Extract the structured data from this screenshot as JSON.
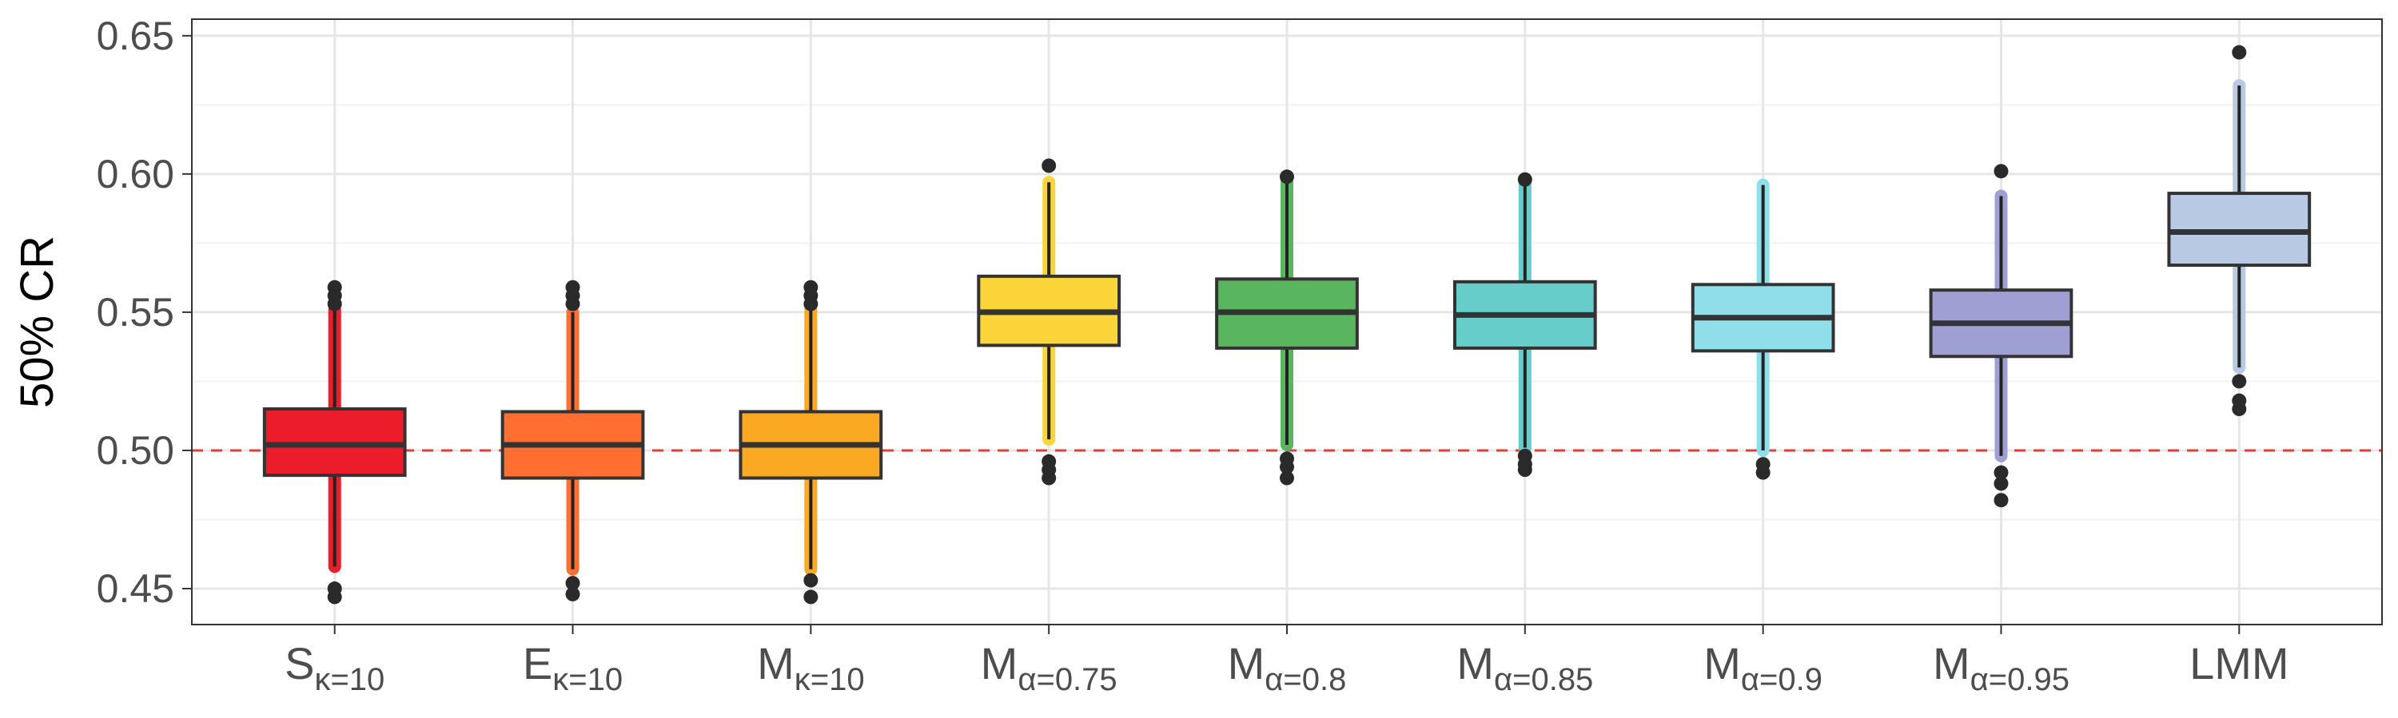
{
  "chart_data": {
    "type": "box",
    "ylabel": "50% CR",
    "ylim": [
      0.437,
      0.656
    ],
    "yticks": [
      0.45,
      0.5,
      0.55,
      0.6,
      0.65
    ],
    "ytick_labels": [
      "0.45",
      "0.50",
      "0.55",
      "0.60",
      "0.65"
    ],
    "reference_line": {
      "y": 0.5,
      "color": "#e0403a",
      "style": "dashed"
    },
    "grid": true,
    "legend": "none",
    "boxes": [
      {
        "label_main": "S",
        "label_sub": "κ=10",
        "color": "#ec1d2b",
        "q1": 0.491,
        "median": 0.502,
        "q3": 0.515,
        "whisker_low": 0.458,
        "whisker_high": 0.551,
        "outliers": [
          0.447,
          0.45,
          0.553,
          0.556,
          0.559
        ]
      },
      {
        "label_main": "E",
        "label_sub": "κ=10",
        "color": "#fe6f31",
        "q1": 0.49,
        "median": 0.502,
        "q3": 0.514,
        "whisker_low": 0.457,
        "whisker_high": 0.55,
        "outliers": [
          0.448,
          0.452,
          0.553,
          0.556,
          0.559
        ]
      },
      {
        "label_main": "M",
        "label_sub": "κ=10",
        "color": "#fba922",
        "q1": 0.49,
        "median": 0.502,
        "q3": 0.514,
        "whisker_low": 0.457,
        "whisker_high": 0.551,
        "outliers": [
          0.447,
          0.453,
          0.553,
          0.556,
          0.559
        ]
      },
      {
        "label_main": "M",
        "label_sub": "α=0.75",
        "color": "#fad53a",
        "q1": 0.538,
        "median": 0.55,
        "q3": 0.563,
        "whisker_low": 0.504,
        "whisker_high": 0.597,
        "outliers": [
          0.49,
          0.493,
          0.496,
          0.603
        ]
      },
      {
        "label_main": "M",
        "label_sub": "α=0.8",
        "color": "#5ab55f",
        "q1": 0.537,
        "median": 0.55,
        "q3": 0.562,
        "whisker_low": 0.502,
        "whisker_high": 0.597,
        "outliers": [
          0.49,
          0.494,
          0.497,
          0.599
        ]
      },
      {
        "label_main": "M",
        "label_sub": "α=0.85",
        "color": "#66cdcb",
        "q1": 0.537,
        "median": 0.549,
        "q3": 0.561,
        "whisker_low": 0.501,
        "whisker_high": 0.596,
        "outliers": [
          0.493,
          0.495,
          0.498,
          0.598
        ]
      },
      {
        "label_main": "M",
        "label_sub": "α=0.9",
        "color": "#8edfe9",
        "q1": 0.536,
        "median": 0.548,
        "q3": 0.56,
        "whisker_low": 0.5,
        "whisker_high": 0.596,
        "outliers": [
          0.492,
          0.495
        ]
      },
      {
        "label_main": "M",
        "label_sub": "α=0.95",
        "color": "#9f9fd4",
        "q1": 0.534,
        "median": 0.546,
        "q3": 0.558,
        "whisker_low": 0.498,
        "whisker_high": 0.592,
        "outliers": [
          0.482,
          0.488,
          0.492,
          0.601
        ]
      },
      {
        "label_main": "LMM",
        "label_sub": "",
        "color": "#b8c9e4",
        "q1": 0.567,
        "median": 0.579,
        "q3": 0.593,
        "whisker_low": 0.53,
        "whisker_high": 0.632,
        "outliers": [
          0.515,
          0.518,
          0.525,
          0.644
        ]
      }
    ]
  }
}
